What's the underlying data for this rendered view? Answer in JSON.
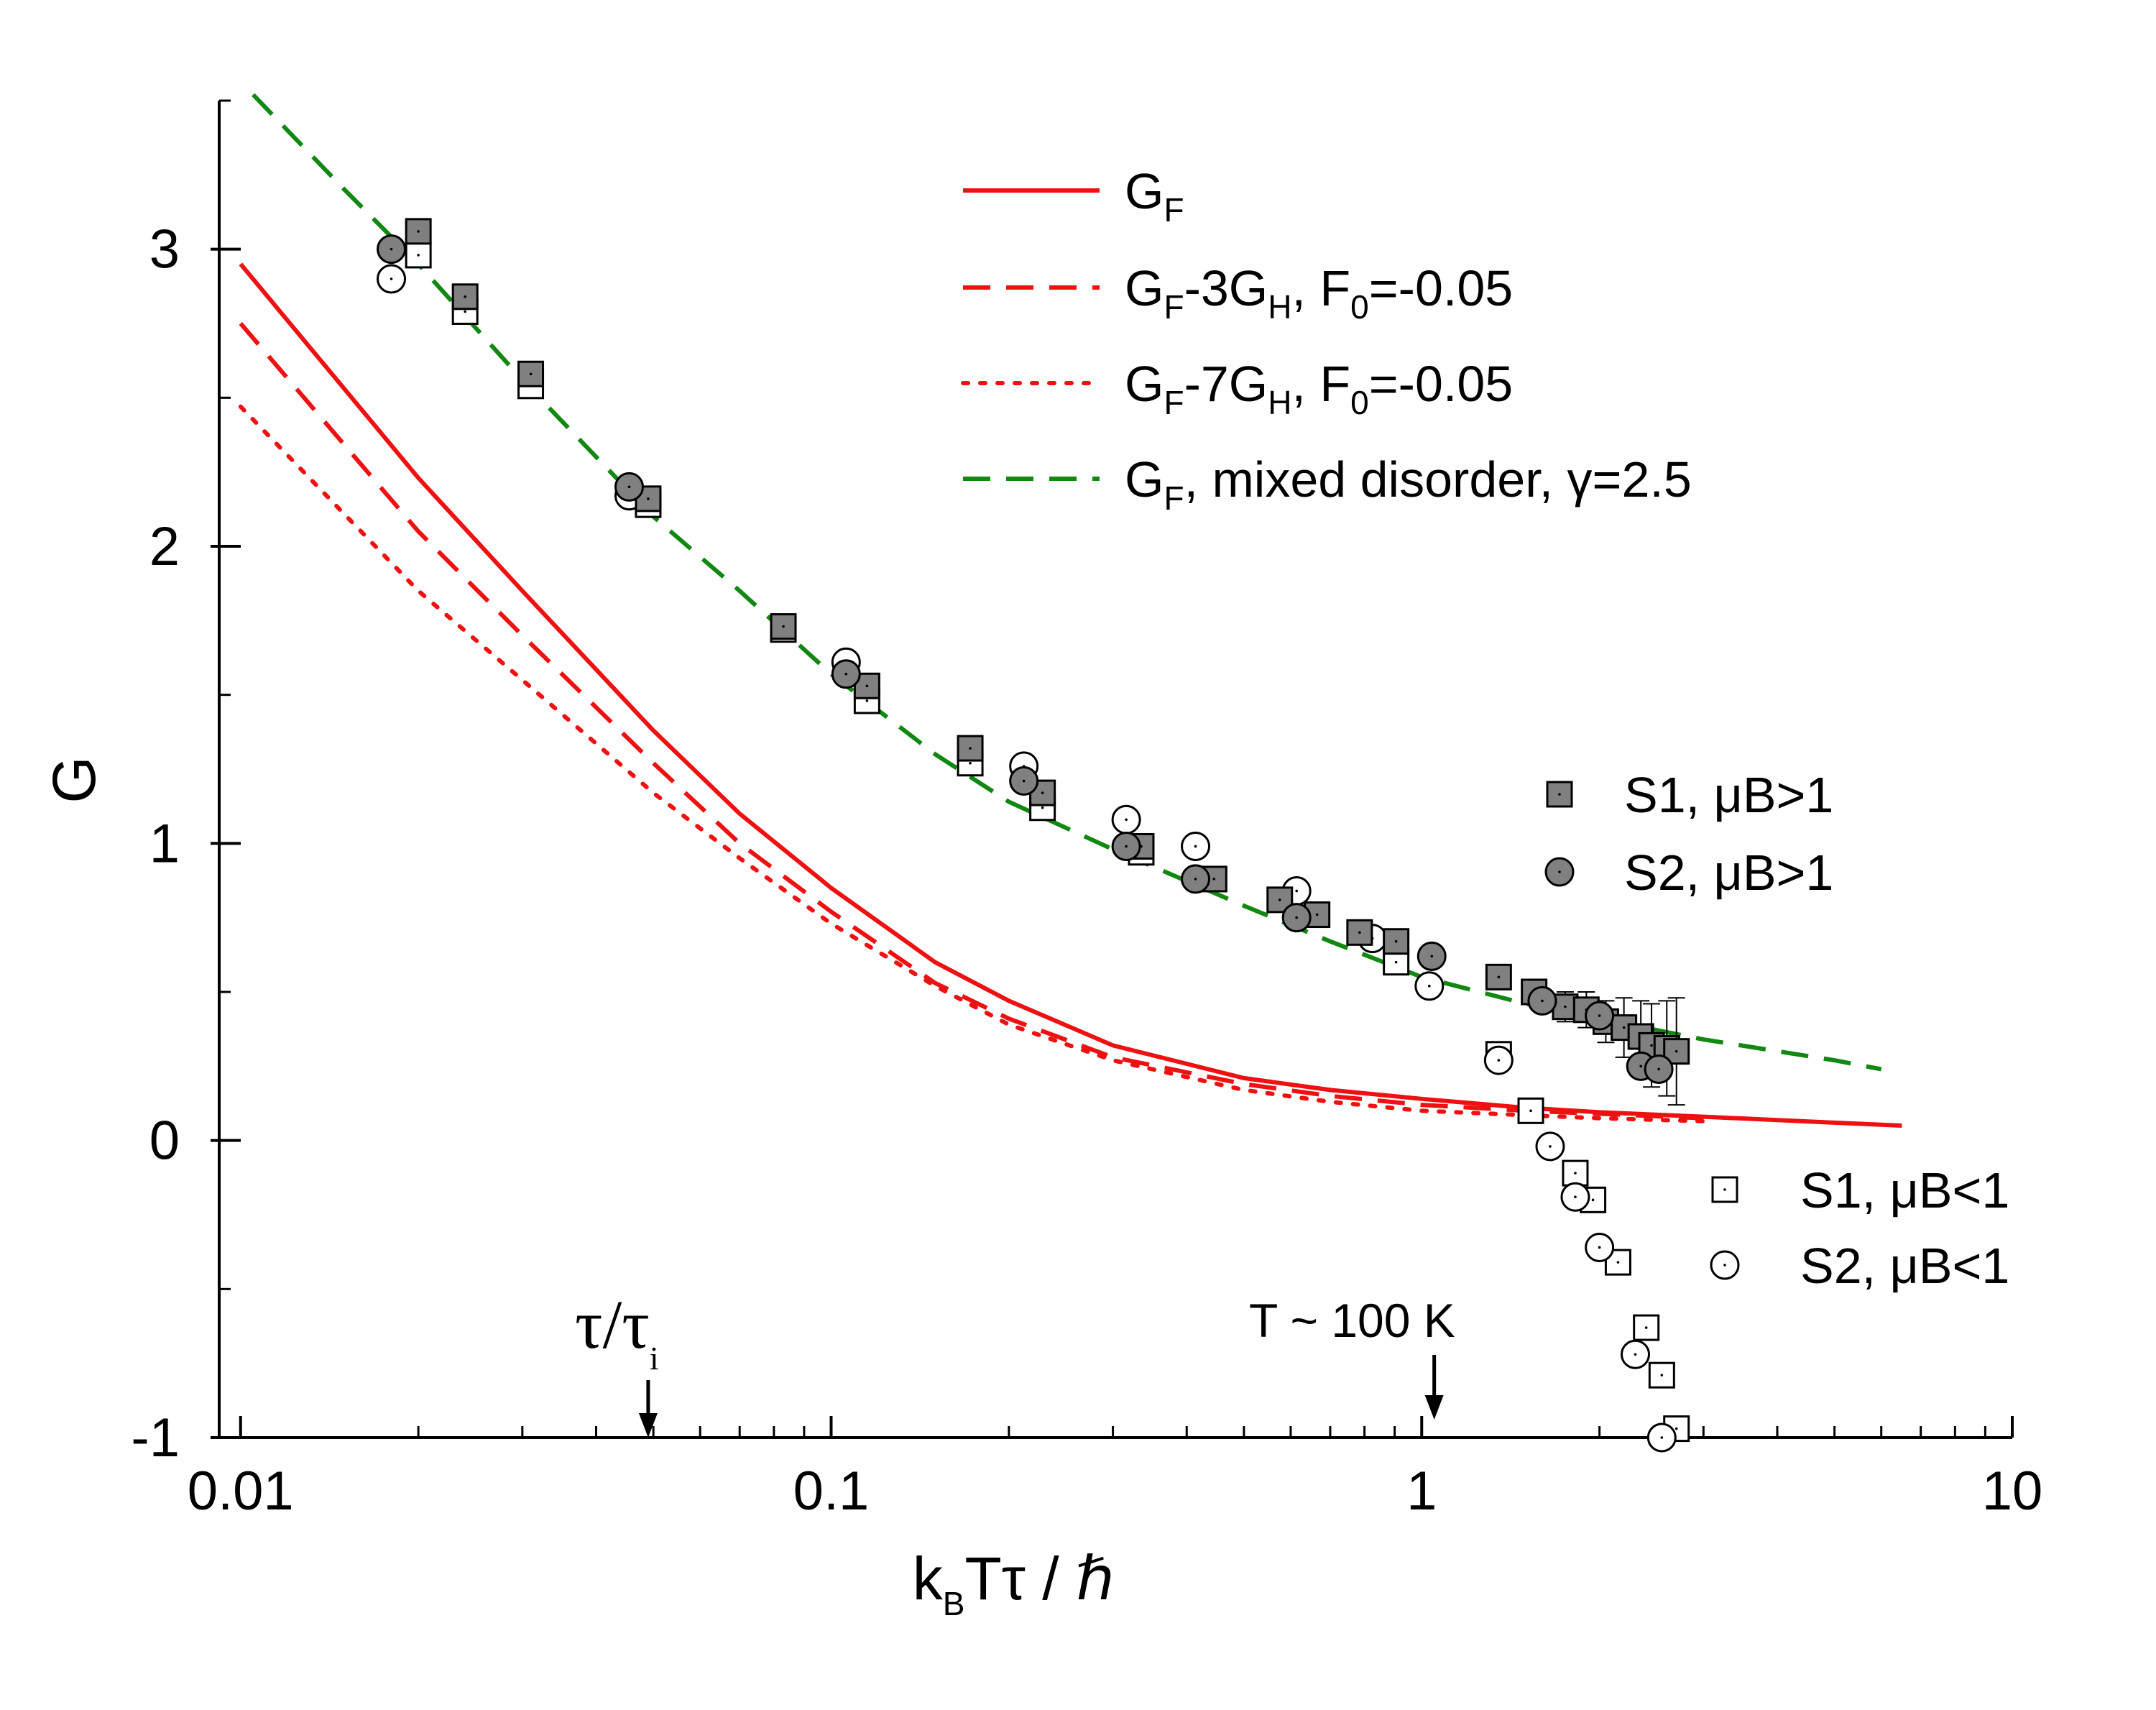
{
  "chart_data": {
    "type": "scatter",
    "title": "",
    "xscale": "log",
    "xlim": [
      0.0092,
      10
    ],
    "ylim": [
      -1,
      3.5
    ],
    "xlabel": {
      "base": "k",
      "sub": "B",
      "rest": "Tτ / ℏ"
    },
    "ylabel": "G",
    "x_ticks": [
      {
        "value": 0.01,
        "label": "0.01"
      },
      {
        "value": 0.1,
        "label": "0.1"
      },
      {
        "value": 1,
        "label": "1"
      },
      {
        "value": 10,
        "label": "10"
      }
    ],
    "y_ticks": [
      {
        "value": -1,
        "label": "-1"
      },
      {
        "value": 0,
        "label": "0"
      },
      {
        "value": 1,
        "label": "1"
      },
      {
        "value": 2,
        "label": "2"
      },
      {
        "value": 3,
        "label": "3"
      }
    ],
    "y_minor_ticks": [
      -0.5,
      0.5,
      1.5,
      2.5,
      3.5
    ],
    "legend_position": "top-right",
    "lines": [
      {
        "name": "G_F",
        "label_main": "G",
        "label_sub": "F",
        "color": "#ee1111",
        "style": "solid",
        "x": [
          0.01,
          0.02,
          0.03,
          0.05,
          0.07,
          0.1,
          0.15,
          0.2,
          0.3,
          0.5,
          0.7,
          1.0,
          1.5,
          2.0,
          3.0,
          5.0,
          6.5
        ],
        "y": [
          2.95,
          2.23,
          1.85,
          1.38,
          1.1,
          0.85,
          0.6,
          0.47,
          0.32,
          0.21,
          0.17,
          0.14,
          0.11,
          0.095,
          0.08,
          0.06,
          0.05
        ]
      },
      {
        "name": "G_F-3G_H, F_0=-0.05",
        "label_main": "G",
        "label_sub": "F",
        "label_rest": "-3G",
        "label_sub2": "H",
        "label_rest2": ", F",
        "label_sub3": "0",
        "label_rest3": "=-0.05",
        "color": "#ee1111",
        "style": "dashed",
        "x": [
          0.01,
          0.02,
          0.03,
          0.05,
          0.07,
          0.1,
          0.15,
          0.2,
          0.3,
          0.5,
          0.7,
          1.0,
          1.5,
          2.0,
          3.0
        ],
        "y": [
          2.75,
          2.05,
          1.7,
          1.27,
          1.0,
          0.77,
          0.53,
          0.41,
          0.28,
          0.19,
          0.15,
          0.12,
          0.1,
          0.09,
          0.075
        ]
      },
      {
        "name": "G_F-7G_H, F_0=-0.05",
        "label_main": "G",
        "label_sub": "F",
        "label_rest": "-7G",
        "label_sub2": "H",
        "label_rest2": ", F",
        "label_sub3": "0",
        "label_rest3": "=-0.05",
        "color": "#ee1111",
        "style": "dotted",
        "x": [
          0.01,
          0.02,
          0.03,
          0.05,
          0.07,
          0.1,
          0.15,
          0.2,
          0.3,
          0.5,
          0.7,
          1.0,
          1.5,
          2.0,
          3.0
        ],
        "y": [
          2.47,
          1.85,
          1.55,
          1.17,
          0.95,
          0.73,
          0.52,
          0.39,
          0.27,
          0.17,
          0.13,
          0.1,
          0.085,
          0.075,
          0.065
        ]
      },
      {
        "name": "G_F, mixed disorder, γ=2.5",
        "label_main": "G",
        "label_sub": "F",
        "label_rest": ", mixed disorder, γ=2.5",
        "color": "#118811",
        "style": "dashed",
        "x": [
          0.0105,
          0.015,
          0.02,
          0.03,
          0.05,
          0.07,
          0.1,
          0.15,
          0.2,
          0.3,
          0.5,
          0.7,
          1.0,
          1.5,
          2.0,
          3.0,
          5.0,
          6.0
        ],
        "y": [
          3.52,
          3.2,
          2.95,
          2.56,
          2.1,
          1.85,
          1.57,
          1.3,
          1.14,
          0.98,
          0.79,
          0.67,
          0.55,
          0.46,
          0.41,
          0.34,
          0.27,
          0.24
        ]
      }
    ],
    "series": [
      {
        "name": "S1, μB>1",
        "marker": "square",
        "fill": "#808080",
        "x": [
          0.02,
          0.024,
          0.031,
          0.049,
          0.083,
          0.115,
          0.172,
          0.228,
          0.335,
          0.445,
          0.575,
          0.665,
          0.785,
          0.905,
          1.35,
          1.55,
          1.75,
          1.9,
          2.05,
          2.2,
          2.35,
          2.45,
          2.6,
          2.7
        ],
        "y": [
          3.06,
          2.84,
          2.58,
          2.16,
          1.73,
          1.53,
          1.32,
          1.17,
          0.99,
          0.88,
          0.81,
          0.76,
          0.7,
          0.67,
          0.55,
          0.5,
          0.45,
          0.44,
          0.4,
          0.38,
          0.35,
          0.32,
          0.31,
          0.3
        ],
        "err": [
          0,
          0,
          0,
          0,
          0,
          0,
          0,
          0,
          0,
          0,
          0,
          0,
          0,
          0,
          0,
          0,
          0.05,
          0.06,
          0.07,
          0.1,
          0.12,
          0.14,
          0.16,
          0.18
        ]
      },
      {
        "name": "S2, μB>1",
        "marker": "circle",
        "fill": "#808080",
        "x": [
          0.018,
          0.0455,
          0.106,
          0.212,
          0.316,
          0.414,
          0.614,
          1.04,
          1.6,
          2.0,
          2.35,
          2.52
        ],
        "y": [
          3.0,
          2.2,
          1.57,
          1.21,
          0.99,
          0.88,
          0.75,
          0.62,
          0.47,
          0.42,
          0.25,
          0.24
        ]
      },
      {
        "name": "S1, μB<1",
        "marker": "square",
        "fill": "#ffffff",
        "x": [
          0.02,
          0.024,
          0.031,
          0.049,
          0.083,
          0.115,
          0.172,
          0.228,
          0.335,
          0.905,
          1.35,
          1.53,
          1.82,
          1.95,
          2.15,
          2.4,
          2.55,
          2.7
        ],
        "y": [
          2.98,
          2.79,
          2.54,
          2.14,
          1.72,
          1.48,
          1.27,
          1.12,
          0.97,
          0.6,
          0.29,
          0.1,
          -0.11,
          -0.2,
          -0.41,
          -0.63,
          -0.79,
          -0.97
        ]
      },
      {
        "name": "S2, μB<1",
        "marker": "circle",
        "fill": "#ffffff",
        "x": [
          0.018,
          0.0455,
          0.106,
          0.212,
          0.316,
          0.414,
          0.614,
          0.825,
          1.03,
          1.35,
          1.65,
          1.82,
          2.0,
          2.3,
          2.55
        ],
        "y": [
          2.9,
          2.17,
          1.61,
          1.26,
          1.08,
          0.99,
          0.84,
          0.68,
          0.52,
          0.27,
          -0.02,
          -0.19,
          -0.36,
          -0.72,
          -1.0
        ]
      }
    ],
    "annotations": [
      {
        "name": "tau-ratio",
        "base": "τ/τ",
        "sub": "i",
        "arrow_x": 0.049,
        "font": "serif"
      },
      {
        "name": "temperature",
        "text": "T ~ 100 K",
        "arrow_x": 1.05,
        "font": "sans"
      }
    ]
  }
}
